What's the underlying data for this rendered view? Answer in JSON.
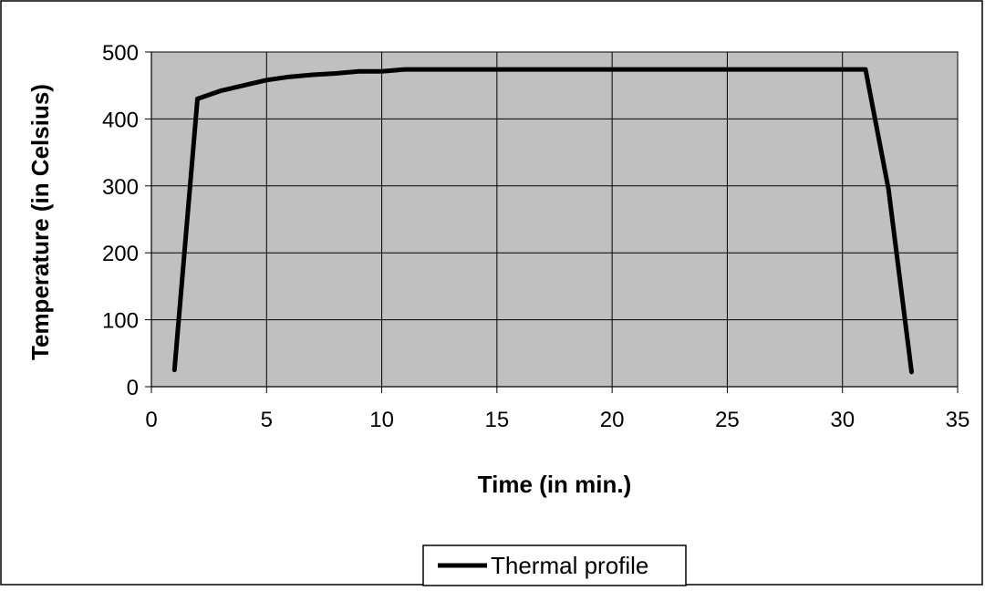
{
  "chart_data": {
    "type": "line",
    "title": "",
    "xlabel": "Time (in min.)",
    "ylabel": "Temperature (in Celsius)",
    "xlim": [
      0,
      35
    ],
    "ylim": [
      0,
      500
    ],
    "xticks": [
      0,
      5,
      10,
      15,
      20,
      25,
      30,
      35
    ],
    "yticks": [
      0,
      100,
      200,
      300,
      400,
      500
    ],
    "grid": true,
    "legend": "bottom-center",
    "plot_background": "#c0c0c0",
    "series": [
      {
        "name": "Thermal profile",
        "color": "#000000",
        "x": [
          1,
          2,
          3,
          4,
          5,
          6,
          7,
          8,
          9,
          10,
          11,
          31,
          32,
          33
        ],
        "y": [
          25,
          430,
          442,
          450,
          458,
          463,
          466,
          468,
          471,
          471,
          474,
          474,
          295,
          22
        ]
      }
    ]
  }
}
